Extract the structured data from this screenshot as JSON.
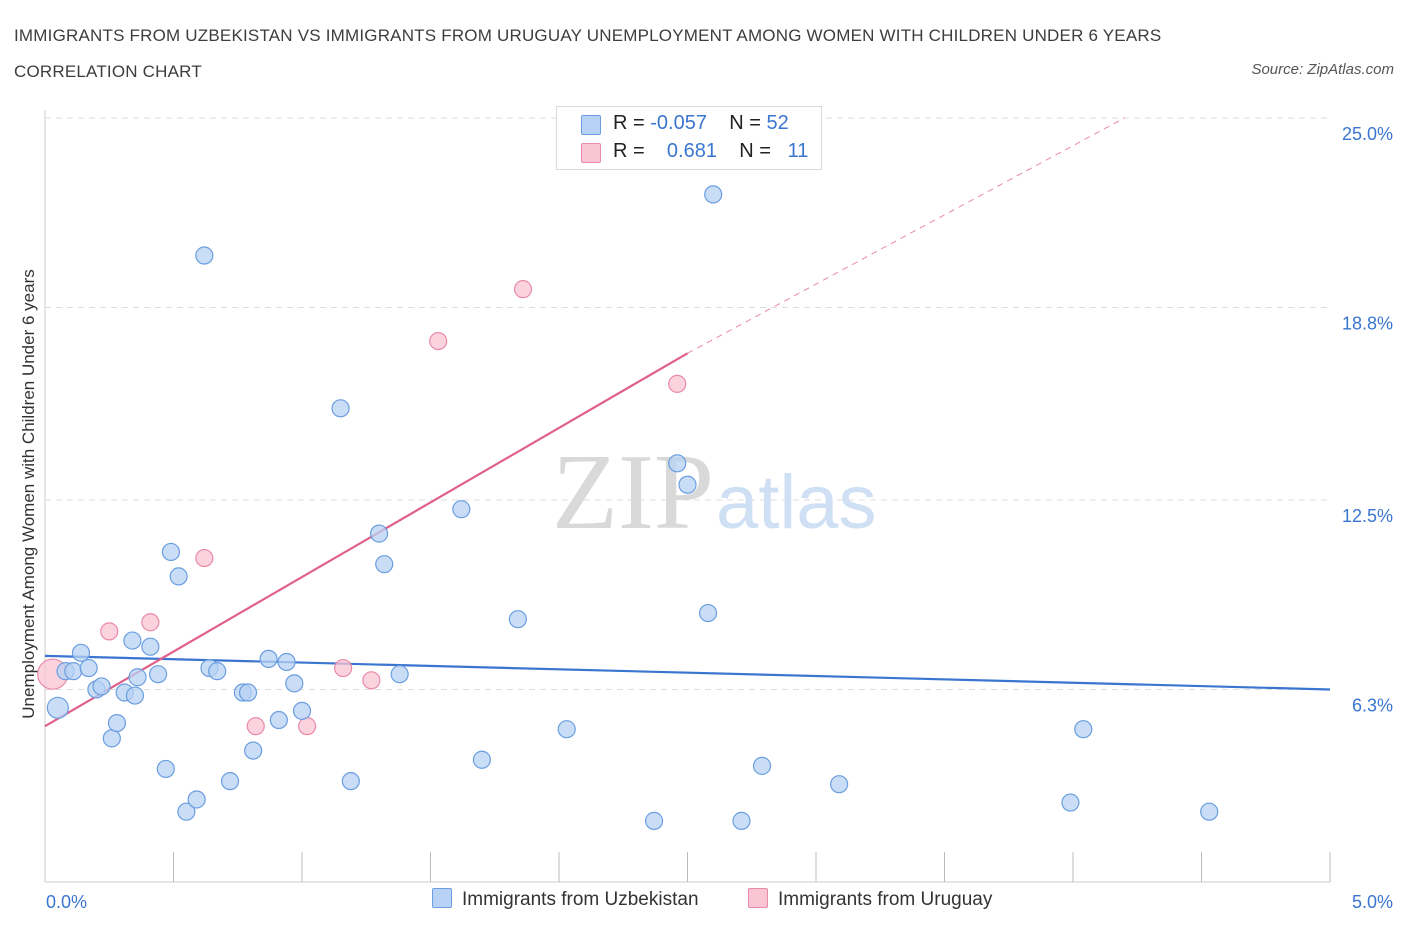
{
  "title": "IMMIGRANTS FROM UZBEKISTAN VS IMMIGRANTS FROM URUGUAY UNEMPLOYMENT AMONG WOMEN WITH CHILDREN UNDER 6 YEARS CORRELATION CHART",
  "source": "Source: ZipAtlas.com",
  "watermark": {
    "zip": "ZIP",
    "atlas": "atlas"
  },
  "legend": {
    "r_label": "R =",
    "n_label": "N =",
    "series": [
      {
        "r": "-0.057",
        "n": "52"
      },
      {
        "r": "0.681",
        "n": "11"
      }
    ]
  },
  "colors": {
    "uzbekistan_fill": "#b7d2f4",
    "uzbekistan_stroke": "#6a9ee0",
    "uzbekistan_line": "#3a76d0",
    "uruguay_fill": "#f9c4d4",
    "uruguay_stroke": "#e98aa8",
    "uruguay_line": "#e0608a",
    "tick_label": "#3a76d0",
    "grid": "#dddddd"
  },
  "chart_data": {
    "type": "scatter",
    "title": "IMMIGRANTS FROM UZBEKISTAN VS IMMIGRANTS FROM URUGUAY UNEMPLOYMENT AMONG WOMEN WITH CHILDREN UNDER 6 YEARS CORRELATION CHART",
    "xlabel": "",
    "ylabel": "Unemployment Among Women with Children Under 6 years",
    "xlim": [
      0,
      5
    ],
    "ylim": [
      0,
      25
    ],
    "x_tick_labels": [
      "0.0%",
      "5.0%"
    ],
    "y_ticks": [
      6.3,
      12.5,
      18.8,
      25.0
    ],
    "y_tick_labels": [
      "6.3%",
      "12.5%",
      "18.8%",
      "25.0%"
    ],
    "grid": true,
    "series": [
      {
        "name": "Immigrants from Uzbekistan",
        "r": -0.057,
        "n": 52,
        "trend": {
          "x": [
            0,
            5
          ],
          "y": [
            7.4,
            6.3
          ]
        },
        "points": [
          {
            "x": 0.05,
            "y": 5.7,
            "big": true
          },
          {
            "x": 0.08,
            "y": 6.9
          },
          {
            "x": 0.11,
            "y": 6.9
          },
          {
            "x": 0.14,
            "y": 7.5
          },
          {
            "x": 0.17,
            "y": 7.0
          },
          {
            "x": 0.2,
            "y": 6.3
          },
          {
            "x": 0.22,
            "y": 6.4
          },
          {
            "x": 0.26,
            "y": 4.7
          },
          {
            "x": 0.28,
            "y": 5.2
          },
          {
            "x": 0.31,
            "y": 6.2
          },
          {
            "x": 0.34,
            "y": 7.9
          },
          {
            "x": 0.36,
            "y": 6.7
          },
          {
            "x": 0.41,
            "y": 7.7
          },
          {
            "x": 0.44,
            "y": 6.8
          },
          {
            "x": 0.47,
            "y": 3.7
          },
          {
            "x": 0.49,
            "y": 10.8
          },
          {
            "x": 0.52,
            "y": 10.0
          },
          {
            "x": 0.55,
            "y": 2.3
          },
          {
            "x": 0.59,
            "y": 2.7
          },
          {
            "x": 0.62,
            "y": 20.5
          },
          {
            "x": 0.64,
            "y": 7.0
          },
          {
            "x": 0.67,
            "y": 6.9
          },
          {
            "x": 0.72,
            "y": 3.3
          },
          {
            "x": 0.77,
            "y": 6.2
          },
          {
            "x": 0.79,
            "y": 6.2
          },
          {
            "x": 0.81,
            "y": 4.3
          },
          {
            "x": 0.87,
            "y": 7.3
          },
          {
            "x": 0.91,
            "y": 5.3
          },
          {
            "x": 0.94,
            "y": 7.2
          },
          {
            "x": 0.97,
            "y": 6.5
          },
          {
            "x": 1.0,
            "y": 5.6
          },
          {
            "x": 1.15,
            "y": 15.5
          },
          {
            "x": 1.19,
            "y": 3.3
          },
          {
            "x": 1.3,
            "y": 11.4
          },
          {
            "x": 1.32,
            "y": 10.4
          },
          {
            "x": 1.38,
            "y": 6.8
          },
          {
            "x": 1.62,
            "y": 12.2
          },
          {
            "x": 1.7,
            "y": 4.0
          },
          {
            "x": 1.84,
            "y": 8.6
          },
          {
            "x": 2.03,
            "y": 5.0
          },
          {
            "x": 2.37,
            "y": 2.0
          },
          {
            "x": 2.46,
            "y": 13.7
          },
          {
            "x": 2.5,
            "y": 13.0
          },
          {
            "x": 2.58,
            "y": 8.8
          },
          {
            "x": 2.6,
            "y": 22.5
          },
          {
            "x": 2.71,
            "y": 2.0
          },
          {
            "x": 2.79,
            "y": 3.8
          },
          {
            "x": 3.09,
            "y": 3.2
          },
          {
            "x": 3.99,
            "y": 2.6
          },
          {
            "x": 4.04,
            "y": 5.0
          },
          {
            "x": 4.53,
            "y": 2.3
          },
          {
            "x": 0.35,
            "y": 6.1
          }
        ]
      },
      {
        "name": "Immigrants from Uruguay",
        "r": 0.681,
        "n": 11,
        "trend": {
          "x": [
            0,
            2.5
          ],
          "y": [
            5.1,
            17.3
          ]
        },
        "trend_extension": {
          "x": [
            2.5,
            4.2
          ],
          "y": [
            17.3,
            25.0
          ]
        },
        "points": [
          {
            "x": 0.03,
            "y": 6.8,
            "big": true
          },
          {
            "x": 0.25,
            "y": 8.2
          },
          {
            "x": 0.41,
            "y": 8.5
          },
          {
            "x": 0.62,
            "y": 10.6
          },
          {
            "x": 0.82,
            "y": 5.1
          },
          {
            "x": 1.02,
            "y": 5.1
          },
          {
            "x": 1.16,
            "y": 7.0
          },
          {
            "x": 1.27,
            "y": 6.6
          },
          {
            "x": 1.53,
            "y": 17.7
          },
          {
            "x": 1.86,
            "y": 19.4
          },
          {
            "x": 2.46,
            "y": 16.3
          }
        ]
      }
    ]
  }
}
